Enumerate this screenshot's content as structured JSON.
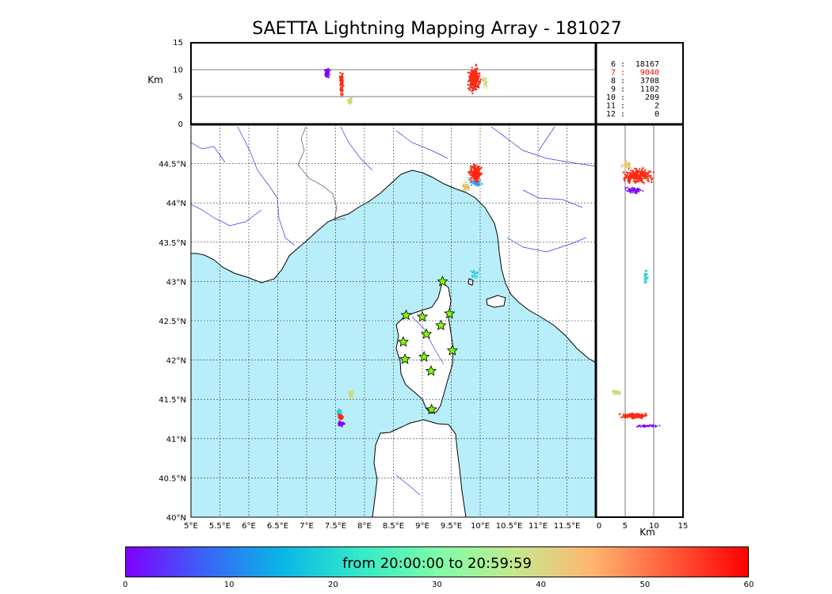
{
  "title": "SAETTA Lightning Mapping Array - 181027",
  "map": {
    "lon_min": 5,
    "lon_max": 12,
    "lat_min": 40,
    "lat_max": 45,
    "lon_ticks": [
      "5°E",
      "5.5°E",
      "6°E",
      "6.5°E",
      "7°E",
      "7.5°E",
      "8°E",
      "8.5°E",
      "9°E",
      "9.5°E",
      "10°E",
      "10.5°E",
      "11°E",
      "11.5°E"
    ],
    "lat_ticks": [
      "40°N",
      "40.5°N",
      "41°N",
      "41.5°N",
      "42°N",
      "42.5°N",
      "43°N",
      "43.5°N",
      "44°N",
      "44.5°N"
    ],
    "grid": true,
    "sea_color": "#b8eefa",
    "land_color": "#ffffff",
    "coast_color": "#000000",
    "river_color": "#3333ee"
  },
  "altitude_panel": {
    "ylabel": "Km",
    "y_ticks": [
      "0",
      "5",
      "10",
      "15"
    ],
    "ylim": [
      0,
      15
    ]
  },
  "side_panel": {
    "xlabel": "Km",
    "x_ticks": [
      "0",
      "5",
      "10",
      "15"
    ],
    "xlim": [
      0,
      15
    ]
  },
  "counts": [
    {
      "label": "6 :",
      "value": "18167",
      "color": "#000000"
    },
    {
      "label": "7 :",
      "value": "9040",
      "color": "#ff0000"
    },
    {
      "label": "8 :",
      "value": "3708",
      "color": "#000000"
    },
    {
      "label": "9 :",
      "value": "1102",
      "color": "#000000"
    },
    {
      "label": "10 :",
      "value": "209",
      "color": "#000000"
    },
    {
      "label": "11 :",
      "value": "2",
      "color": "#000000"
    },
    {
      "label": "12 :",
      "value": "0",
      "color": "#000000"
    }
  ],
  "stations": [
    {
      "lon": 9.35,
      "lat": 43.0
    },
    {
      "lon": 8.72,
      "lat": 42.57
    },
    {
      "lon": 9.0,
      "lat": 42.55
    },
    {
      "lon": 9.47,
      "lat": 42.59
    },
    {
      "lon": 9.32,
      "lat": 42.44
    },
    {
      "lon": 9.07,
      "lat": 42.33
    },
    {
      "lon": 8.67,
      "lat": 42.23
    },
    {
      "lon": 9.52,
      "lat": 42.12
    },
    {
      "lon": 9.03,
      "lat": 42.04
    },
    {
      "lon": 8.7,
      "lat": 42.01
    },
    {
      "lon": 9.15,
      "lat": 41.86
    },
    {
      "lon": 9.16,
      "lat": 41.37
    }
  ],
  "colorbar": {
    "label": "from 20:00:00 to 20:59:59",
    "ticks": [
      "0",
      "10",
      "20",
      "30",
      "40",
      "50",
      "60"
    ],
    "colors": [
      "#7f00ff",
      "#3b62f8",
      "#09b6e6",
      "#33e9c9",
      "#7dfda9",
      "#c5e98e",
      "#ffb570",
      "#ff5b3a",
      "#ff0000"
    ]
  }
}
